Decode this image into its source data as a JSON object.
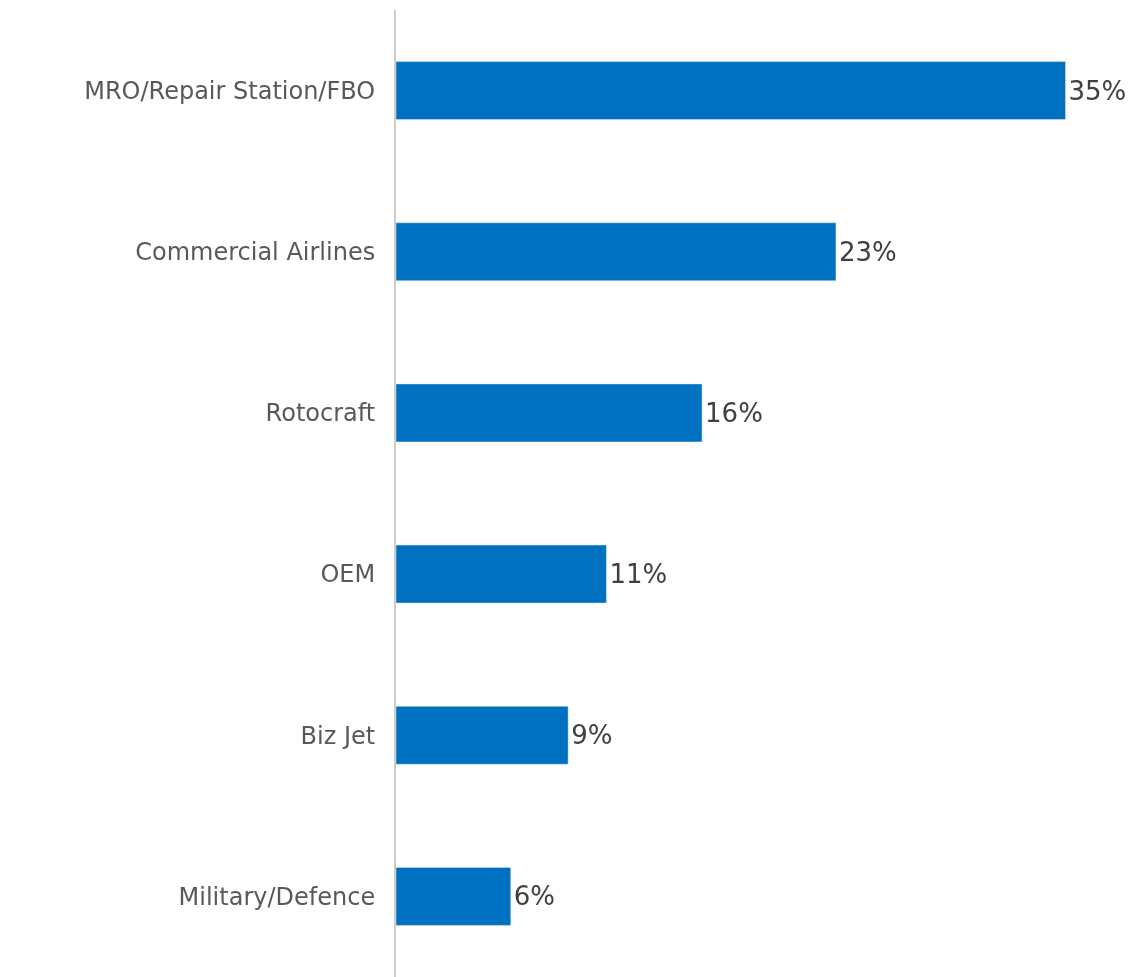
{
  "chart_data": {
    "type": "bar",
    "orientation": "horizontal",
    "categories": [
      "MRO/Repair Station/FBO",
      "Commercial Airlines",
      "Rotocraft",
      "OEM",
      "Biz Jet",
      "Military/Defence"
    ],
    "values": [
      35,
      23,
      16,
      11,
      9,
      6
    ],
    "value_labels": [
      "35%",
      "23%",
      "16%",
      "11%",
      "9%",
      "6%"
    ],
    "color": "#0070c0",
    "xlim": [
      0,
      39
    ],
    "tick_labels": "y"
  }
}
